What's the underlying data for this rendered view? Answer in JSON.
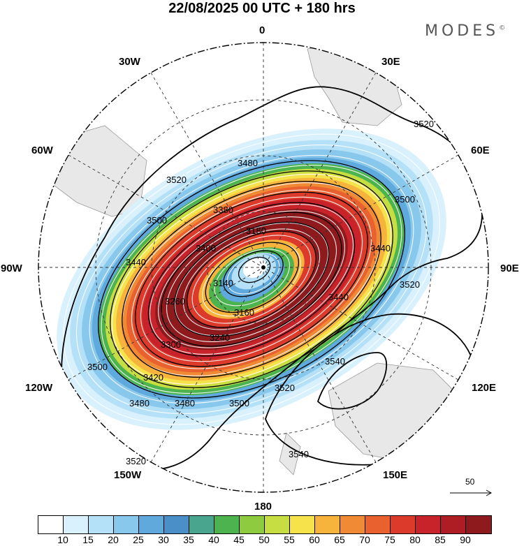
{
  "title": "22/08/2025  00 UTC  + 180 hrs",
  "brand": "MODES",
  "brand_mark": "©",
  "longitude_labels": {
    "top": "0",
    "top_right": "30E",
    "right_upper": "60E",
    "right": "90E",
    "right_lower": "120E",
    "bottom_right": "150E",
    "bottom": "180",
    "bottom_left": "150W",
    "left_lower": "120W",
    "left": "90W",
    "left_upper": "60W",
    "top_left": "30W"
  },
  "contour_labels": [
    "3520",
    "3480",
    "3500",
    "3520",
    "3500",
    "3440",
    "3180",
    "3140",
    "3160",
    "3240",
    "3300",
    "3420",
    "3480",
    "3480",
    "3500",
    "3520",
    "3540",
    "3540",
    "3520",
    "3520",
    "3440",
    "3500",
    "3260",
    "3400",
    "3380",
    "3440"
  ],
  "reference_vector": {
    "value": "50",
    "icon": "arrow-right-icon"
  },
  "colorbar": {
    "colors": [
      "#ffffff",
      "#d8f1fc",
      "#b4e1f7",
      "#88c8ec",
      "#5fa9dc",
      "#4a8fc8",
      "#4aa58e",
      "#4cb34f",
      "#8fcb3f",
      "#c7de43",
      "#f6e24b",
      "#f7b43c",
      "#f08a34",
      "#e8612e",
      "#dc3a2b",
      "#c8232a",
      "#ae1c24",
      "#8e1a1e"
    ],
    "ticks": [
      "10",
      "15",
      "20",
      "25",
      "30",
      "35",
      "40",
      "45",
      "50",
      "55",
      "60",
      "65",
      "70",
      "75",
      "80",
      "85",
      "90"
    ]
  }
}
